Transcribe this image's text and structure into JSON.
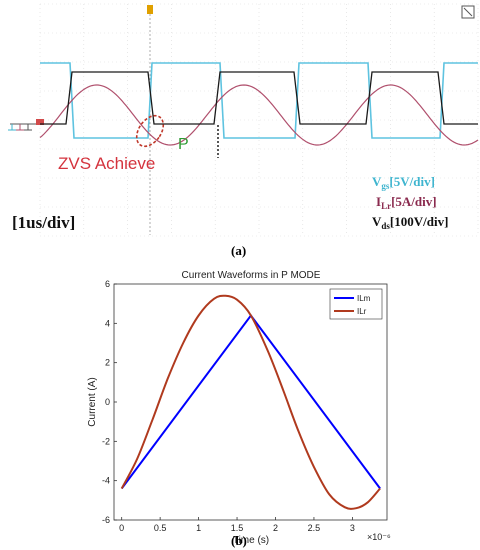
{
  "scope": {
    "annotation_zvs": "ZVS Achieve",
    "annotation_p": "P",
    "timebase": "[1us/div]",
    "legend": [
      {
        "main": "V",
        "sub": "gs",
        "rest": "[5V/div]",
        "color": "#3fb5cf"
      },
      {
        "main": "I",
        "sub": "Lr",
        "rest": "[5A/div]",
        "color": "#8a2a4e"
      },
      {
        "main": "V",
        "sub": "ds",
        "rest": "[100V/div]",
        "color": "#111111"
      }
    ],
    "colors": {
      "vgs": "#5ec3e0",
      "ilr": "#b0506d",
      "vds": "#1a1a1a",
      "zvs_text": "#d4333d",
      "p_text": "#2e9b34",
      "ellipse": "#c0392b"
    }
  },
  "chart_data": {
    "type": "line",
    "title": "Current Waveforms in P MODE",
    "xlabel": "Time (s)",
    "ylabel": "Current (A)",
    "x_multiplier_label": "×10⁻⁶",
    "xlim": [
      -0.1,
      3.45
    ],
    "ylim": [
      -6,
      6
    ],
    "xticks": [
      0,
      0.5,
      1,
      1.5,
      2,
      2.5,
      3
    ],
    "yticks": [
      -6,
      -4,
      -2,
      0,
      2,
      4,
      6
    ],
    "grid": false,
    "legend_position": "top-right",
    "series": [
      {
        "name": "ILm",
        "color": "#0000ff",
        "x": [
          0,
          1.68,
          3.36
        ],
        "y": [
          -4.4,
          4.4,
          -4.4
        ]
      },
      {
        "name": "ILr",
        "color": "#b03a1e",
        "x": [
          0,
          0.2,
          0.4,
          0.6,
          0.8,
          1.0,
          1.2,
          1.35,
          1.5,
          1.68,
          1.9,
          2.1,
          2.3,
          2.5,
          2.7,
          2.9,
          3.05,
          3.2,
          3.36
        ],
        "y": [
          -4.4,
          -2.9,
          -0.9,
          1.2,
          3.0,
          4.4,
          5.25,
          5.4,
          5.2,
          4.4,
          2.6,
          0.6,
          -1.5,
          -3.3,
          -4.7,
          -5.35,
          -5.4,
          -5.1,
          -4.4
        ]
      }
    ]
  },
  "labels": {
    "a": "(a)",
    "b": "(b)"
  }
}
